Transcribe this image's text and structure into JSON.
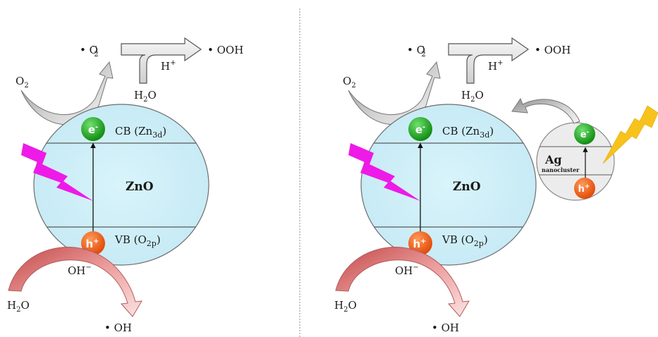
{
  "panels": [
    {
      "id": "left",
      "radical_o2": "• O",
      "radical_o2_sup": "−",
      "radical_o2_sub": "2",
      "h_plus": "H",
      "h_plus_sup": "+",
      "ooh": "• OOH",
      "o2_label": "O",
      "o2_sub": "2",
      "water_top": "H",
      "water_top_sub": "2",
      "water_top_o": "O",
      "electron": "e",
      "electron_sup": "-",
      "cb_label": "CB (Zn",
      "cb_sub": "3d",
      "cb_close": ")",
      "material": "ZnO",
      "hole": "h",
      "hole_sup": "+",
      "vb_label": "VB (O",
      "vb_sub": "2p",
      "vb_close": ")",
      "oh_minus": "OH",
      "oh_minus_sup": "−",
      "water_bottom": "H",
      "water_bottom_sub": "2",
      "water_bottom_o": "O",
      "oh_radical": "• OH"
    },
    {
      "id": "right",
      "radical_o2": "• O",
      "radical_o2_sup": "−",
      "radical_o2_sub": "2",
      "h_plus": "H",
      "h_plus_sup": "+",
      "ooh": "• OOH",
      "o2_label": "O",
      "o2_sub": "2",
      "water_top": "H",
      "water_top_sub": "2",
      "water_top_o": "O",
      "electron": "e",
      "electron_sup": "-",
      "cb_label": "CB (Zn",
      "cb_sub": "3d",
      "cb_close": ")",
      "material": "ZnO",
      "hole": "h",
      "hole_sup": "+",
      "vb_label": "VB (O",
      "vb_sub": "2p",
      "vb_close": ")",
      "oh_minus": "OH",
      "oh_minus_sup": "−",
      "water_bottom": "H",
      "water_bottom_sub": "2",
      "water_bottom_o": "O",
      "oh_radical": "• OH"
    }
  ],
  "ag": {
    "label": "Ag",
    "sublabel": "nanocluster",
    "electron": "e",
    "electron_sup": "-",
    "hole": "h",
    "hole_sup": "+"
  },
  "colors": {
    "sphere_fill": "#cdeef7",
    "sphere_stroke": "#6e6e6e",
    "electron": "#1b9a1b",
    "hole": "#f05a12",
    "lightning_uv": "#ee1ae8",
    "lightning_visible": "#f7c21b",
    "arrow_grey": "#d9d9d9",
    "arrow_red": "#e88a8a",
    "ag_fill": "#ececec",
    "divider": "#888888"
  },
  "icons": [
    "lightning-icon",
    "curved-arrow-icon",
    "block-arrow-icon"
  ]
}
